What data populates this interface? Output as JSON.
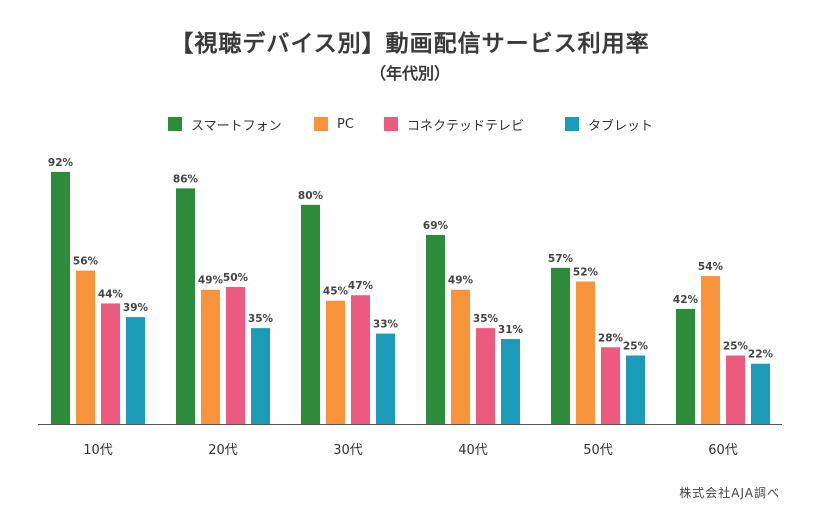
{
  "title": "【視聴デバイス別】動画配信サービス利用率",
  "subtitle": "（年代別）",
  "source": "株式会社AJA調べ",
  "colors": {
    "smartphone": "#2e8b3a",
    "pc": "#f7943c",
    "connected_tv": "#ec5a80",
    "tablet": "#1a9bb8",
    "axis": "#555555",
    "label": "#444444"
  },
  "chart_data": {
    "type": "bar",
    "title": "【視聴デバイス別】動画配信サービス利用率",
    "subtitle": "（年代別）",
    "categories": [
      "10代",
      "20代",
      "30代",
      "40代",
      "50代",
      "60代"
    ],
    "series": [
      {
        "name": "スマートフォン",
        "values": [
          92,
          86,
          80,
          69,
          57,
          42
        ]
      },
      {
        "name": "PC",
        "values": [
          56,
          49,
          45,
          49,
          52,
          54
        ]
      },
      {
        "name": "コネクテッドテレビ",
        "values": [
          44,
          50,
          47,
          35,
          28,
          25
        ]
      },
      {
        "name": "タブレット",
        "values": [
          39,
          35,
          33,
          31,
          25,
          22
        ]
      }
    ],
    "value_suffix": "%",
    "ylim": [
      0,
      100
    ],
    "grid": false,
    "legend_position": "top",
    "xlabel": "",
    "ylabel": ""
  }
}
